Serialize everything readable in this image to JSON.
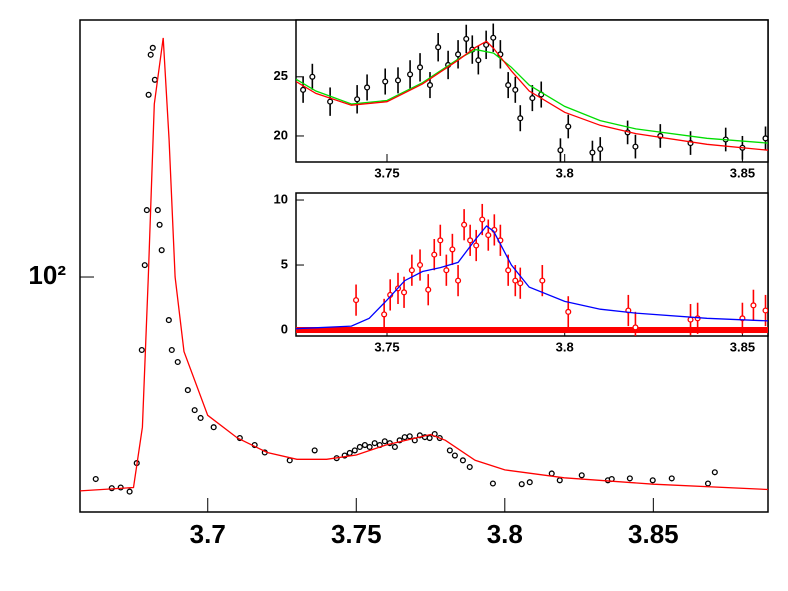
{
  "chart_data": [
    {
      "type": "scatter",
      "log_y": true,
      "xlim": [
        3.657,
        3.8886
      ],
      "ylim": [
        15.2,
        785
      ],
      "xticks": [
        3.7,
        3.75,
        3.8,
        3.85
      ],
      "yticks": [
        {
          "value": 100,
          "label": "10²"
        }
      ],
      "series": [
        {
          "type": "scatter",
          "color": "#000000",
          "x": [
            3.6623,
            3.6677,
            3.6707,
            3.6737,
            3.6761,
            3.6778,
            3.6788,
            3.6795,
            3.6801,
            3.6808,
            3.6815,
            3.6822,
            3.6832,
            3.6838,
            3.6845,
            3.6869,
            3.6879,
            3.6899,
            3.6933,
            3.6956,
            3.6976,
            3.702,
            3.7108,
            3.7158,
            3.7192,
            3.7276,
            3.736,
            3.7434,
            3.7461,
            3.7478,
            3.7495,
            3.7512,
            3.7529,
            3.7545,
            3.7562,
            3.7579,
            3.7596,
            3.7613,
            3.763,
            3.7646,
            3.7663,
            3.768,
            3.7697,
            3.7714,
            3.7731,
            3.7747,
            3.7764,
            3.7781,
            3.7815,
            3.7832,
            3.7859,
            3.7882,
            3.796,
            3.8057,
            3.8084,
            3.8158,
            3.8185,
            3.8259,
            3.8347,
            3.836,
            3.8421,
            3.8498,
            3.8562,
            3.8684,
            3.8707
          ],
          "values": [
            19.8,
            18.4,
            18.5,
            17.9,
            22.5,
            55.7,
            110,
            171,
            431,
            594,
            628,
            486,
            171,
            152,
            124,
            70.8,
            55.7,
            50.6,
            40.4,
            34.4,
            32.3,
            30.0,
            27.5,
            26.0,
            24.5,
            23.0,
            24.9,
            23.4,
            23.9,
            24.4,
            24.9,
            25.6,
            26.0,
            25.6,
            26.4,
            26.0,
            26.8,
            26.4,
            25.6,
            27.0,
            27.7,
            27.9,
            27.0,
            28.1,
            27.7,
            27.5,
            28.4,
            27.5,
            24.9,
            23.9,
            23.0,
            21.8,
            19.1,
            19.0,
            19.3,
            20.7,
            19.6,
            20.4,
            19.6,
            19.8,
            19.9,
            19.6,
            19.9,
            19.1,
            20.9
          ]
        },
        {
          "type": "line",
          "color": "#ff0000",
          "x": [
            3.657,
            3.675,
            3.678,
            3.68,
            3.682,
            3.685,
            3.687,
            3.689,
            3.692,
            3.7,
            3.71,
            3.72,
            3.73,
            3.74,
            3.75,
            3.76,
            3.77,
            3.775,
            3.78,
            3.79,
            3.8,
            3.82,
            3.85,
            3.8886
          ],
          "values": [
            18,
            18.5,
            30,
            100,
            400,
            680,
            300,
            100,
            55,
            33,
            27.5,
            24.5,
            23.2,
            23.2,
            24,
            26,
            27.5,
            28.3,
            27,
            23,
            21.3,
            20,
            19,
            18.2
          ]
        }
      ]
    },
    {
      "type": "scatter",
      "xlim": [
        3.7244,
        3.8572
      ],
      "ylim": [
        17.8,
        29.8
      ],
      "xticks": [
        3.75,
        3.8,
        3.85
      ],
      "yticks": [
        20,
        25
      ],
      "series": [
        {
          "type": "scatter",
          "color": "#000000",
          "x": [
            3.7264,
            3.729,
            3.734,
            3.7416,
            3.7444,
            3.7495,
            3.7531,
            3.7565,
            3.7593,
            3.7621,
            3.7644,
            3.7672,
            3.77,
            3.7723,
            3.774,
            3.7757,
            3.7779,
            3.7799,
            3.7819,
            3.7841,
            3.7861,
            3.7875,
            3.7909,
            3.7934,
            3.7988,
            3.801,
            3.8078,
            3.81,
            3.8177,
            3.8199,
            3.8269,
            3.8354,
            3.8453,
            3.85,
            3.8565
          ],
          "values": [
            23.9,
            25.0,
            22.9,
            23.1,
            24.1,
            24.6,
            24.7,
            25.2,
            25.8,
            24.3,
            27.5,
            26.0,
            26.9,
            28.2,
            27.3,
            26.4,
            27.7,
            28.3,
            26.9,
            24.3,
            23.9,
            21.5,
            23.2,
            23.5,
            18.8,
            20.8,
            18.6,
            18.9,
            20.3,
            19.1,
            20.0,
            19.4,
            19.7,
            19.0,
            19.8
          ],
          "errors": [
            1.1,
            1.1,
            1.2,
            1.2,
            1.1,
            1.1,
            1.1,
            1.2,
            1.2,
            1.1,
            1.2,
            1.2,
            1.2,
            1.2,
            1.2,
            1.2,
            1.2,
            1.2,
            1.2,
            1.1,
            1.1,
            1.1,
            1.1,
            1.1,
            1.0,
            1.0,
            1.0,
            1.0,
            1.0,
            1.0,
            1.0,
            1.0,
            1.0,
            1.0,
            1.0
          ]
        },
        {
          "type": "line",
          "color": "#00dd00",
          "x": [
            3.7244,
            3.73,
            3.74,
            3.75,
            3.76,
            3.77,
            3.775,
            3.78,
            3.785,
            3.79,
            3.8,
            3.81,
            3.82,
            3.84,
            3.8572
          ],
          "values": [
            24.8,
            23.8,
            22.7,
            23.0,
            24.5,
            26.5,
            27.3,
            27.0,
            25.8,
            24.3,
            22.5,
            21.3,
            20.6,
            19.8,
            19.4
          ]
        },
        {
          "type": "line",
          "color": "#ff0000",
          "x": [
            3.7244,
            3.73,
            3.74,
            3.75,
            3.76,
            3.77,
            3.775,
            3.778,
            3.78,
            3.785,
            3.79,
            3.8,
            3.81,
            3.82,
            3.84,
            3.8572
          ],
          "values": [
            24.6,
            23.6,
            22.6,
            22.9,
            24.4,
            26.4,
            27.5,
            28.0,
            27.4,
            25.5,
            23.8,
            22.0,
            20.9,
            20.2,
            19.3,
            18.8
          ]
        }
      ]
    },
    {
      "type": "scatter",
      "xlim": [
        3.7244,
        3.8572
      ],
      "ylim": [
        -0.46,
        10.54
      ],
      "xticks": [
        3.75,
        3.8,
        3.85
      ],
      "yticks": [
        0,
        5,
        10
      ],
      "series": [
        {
          "type": "line",
          "color": "#ff0000",
          "width": 6,
          "x": [
            3.7244,
            3.8572
          ],
          "values": [
            0,
            0
          ]
        },
        {
          "type": "scatter",
          "color": "#ff0000",
          "x": [
            3.7413,
            3.7492,
            3.7509,
            3.7531,
            3.7548,
            3.757,
            3.7593,
            3.7616,
            3.7633,
            3.765,
            3.7667,
            3.7684,
            3.77,
            3.7717,
            3.7734,
            3.7751,
            3.7768,
            3.7785,
            3.7802,
            3.7819,
            3.7841,
            3.7861,
            3.7875,
            3.7937,
            3.801,
            3.8179,
            3.8199,
            3.8354,
            3.8374,
            3.85,
            3.8531,
            3.8565
          ],
          "values": [
            2.3,
            1.2,
            2.7,
            3.2,
            2.9,
            4.6,
            5.0,
            3.1,
            5.8,
            6.9,
            4.6,
            6.2,
            3.8,
            8.1,
            6.9,
            6.5,
            8.5,
            7.3,
            7.7,
            6.9,
            4.6,
            3.8,
            3.6,
            3.8,
            1.4,
            1.5,
            0.2,
            0.8,
            0.9,
            0.9,
            1.9,
            1.5
          ],
          "errors": [
            1.2,
            1.2,
            1.2,
            1.2,
            1.2,
            1.2,
            1.2,
            1.2,
            1.2,
            1.2,
            1.2,
            1.2,
            1.2,
            1.2,
            1.2,
            1.2,
            1.2,
            1.2,
            1.2,
            1.2,
            1.2,
            1.2,
            1.2,
            1.2,
            1.2,
            1.2,
            1.2,
            1.2,
            1.2,
            1.2,
            1.2,
            1.2
          ]
        },
        {
          "type": "line",
          "color": "#0000ff",
          "x": [
            3.7244,
            3.74,
            3.745,
            3.75,
            3.755,
            3.76,
            3.765,
            3.77,
            3.775,
            3.778,
            3.78,
            3.785,
            3.79,
            3.8,
            3.81,
            3.82,
            3.84,
            3.8572
          ],
          "values": [
            0.1,
            0.3,
            0.9,
            2.3,
            3.8,
            4.5,
            4.8,
            5.2,
            7.0,
            8.0,
            7.6,
            5.0,
            3.3,
            2.2,
            1.6,
            1.3,
            0.9,
            0.7
          ]
        }
      ]
    }
  ]
}
